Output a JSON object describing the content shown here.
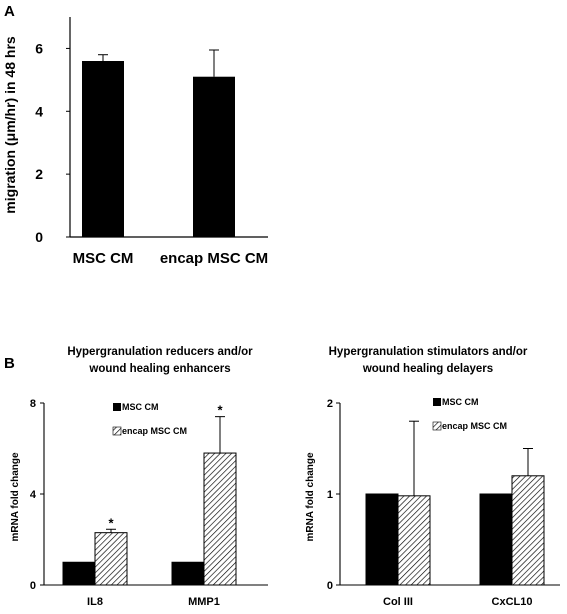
{
  "panel_a_letter": "A",
  "panel_b_letter": "B",
  "chart_data": [
    {
      "type": "bar",
      "title": "",
      "ylabel": "migration (μm/hr) in 48 hrs",
      "xlabel": "",
      "categories": [
        "MSC CM",
        "encap MSC CM"
      ],
      "values": [
        5.6,
        5.1
      ],
      "errors": [
        0.2,
        0.85
      ],
      "ylim": [
        0,
        7
      ],
      "yticks": [
        0,
        2,
        4,
        6
      ],
      "colors": [
        "#000000"
      ]
    },
    {
      "type": "bar",
      "title": [
        "Hypergranulation reducers and/or",
        "wound healing enhancers"
      ],
      "ylabel": "mRNA fold change",
      "categories": [
        "IL8",
        "MMP1"
      ],
      "ylim": [
        0,
        8
      ],
      "yticks": [
        0,
        4,
        8
      ],
      "legend_position": "top-right",
      "series": [
        {
          "name": "MSC CM",
          "values": [
            1.0,
            1.0
          ],
          "errors": [
            0,
            0
          ],
          "pattern": "solid"
        },
        {
          "name": "encap MSC CM",
          "values": [
            2.3,
            5.8
          ],
          "errors": [
            0.15,
            1.6
          ],
          "pattern": "hatched"
        }
      ],
      "annotations": [
        "*",
        "*"
      ]
    },
    {
      "type": "bar",
      "title": [
        "Hypergranulation stimulators and/or",
        "wound healing delayers"
      ],
      "ylabel": "mRNA fold change",
      "categories": [
        "Col III",
        "CxCL10"
      ],
      "ylim": [
        0,
        2
      ],
      "yticks": [
        0,
        1,
        2
      ],
      "legend_position": "top-right",
      "series": [
        {
          "name": "MSC CM",
          "values": [
            1.0,
            1.0
          ],
          "errors": [
            0,
            0
          ],
          "pattern": "solid"
        },
        {
          "name": "encap MSC CM",
          "values": [
            0.98,
            1.2
          ],
          "errors": [
            0.82,
            0.3
          ],
          "pattern": "hatched"
        }
      ]
    }
  ]
}
